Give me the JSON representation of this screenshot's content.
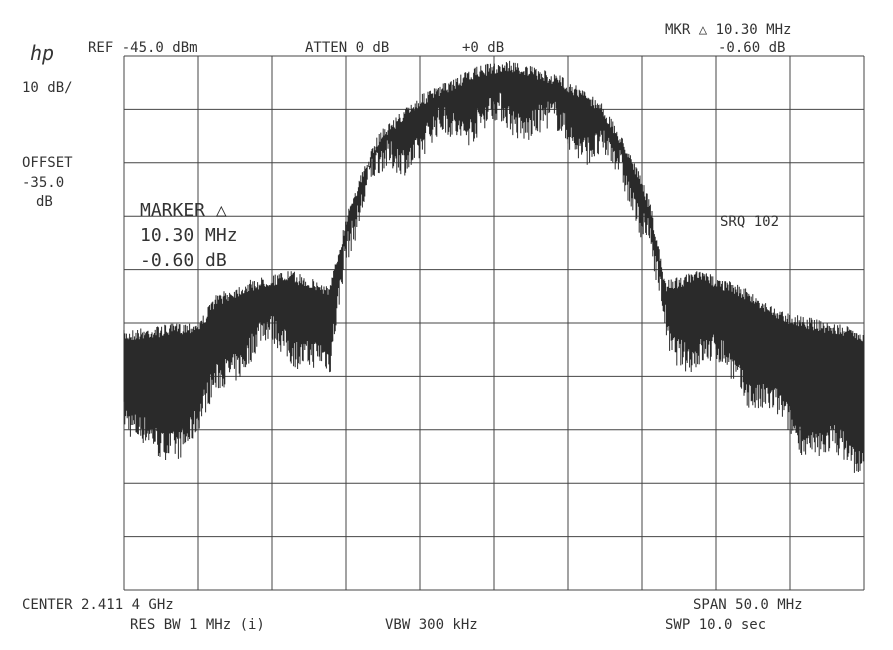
{
  "header": {
    "logo": "hp",
    "ref": "REF -45.0 dBm",
    "atten": "ATTEN 0 dB",
    "offset_top": "+0 dB",
    "marker_freq": "MKR △ 10.30 MHz",
    "marker_level": "-0.60 dB"
  },
  "left": {
    "scale": "10 dB/",
    "offset_label": "OFFSET",
    "offset_value": "-35.0",
    "offset_unit": "dB"
  },
  "marker_box": {
    "title": "MARKER △",
    "freq": "10.30 MHz",
    "level": "-0.60 dB"
  },
  "srq": "SRQ 102",
  "footer": {
    "center": "CENTER 2.411 4 GHz",
    "res_bw": "RES BW 1 MHz (i)",
    "vbw": "VBW 300 kHz",
    "span": "SPAN 50.0 MHz",
    "sweep": "SWP 10.0 sec"
  }
}
